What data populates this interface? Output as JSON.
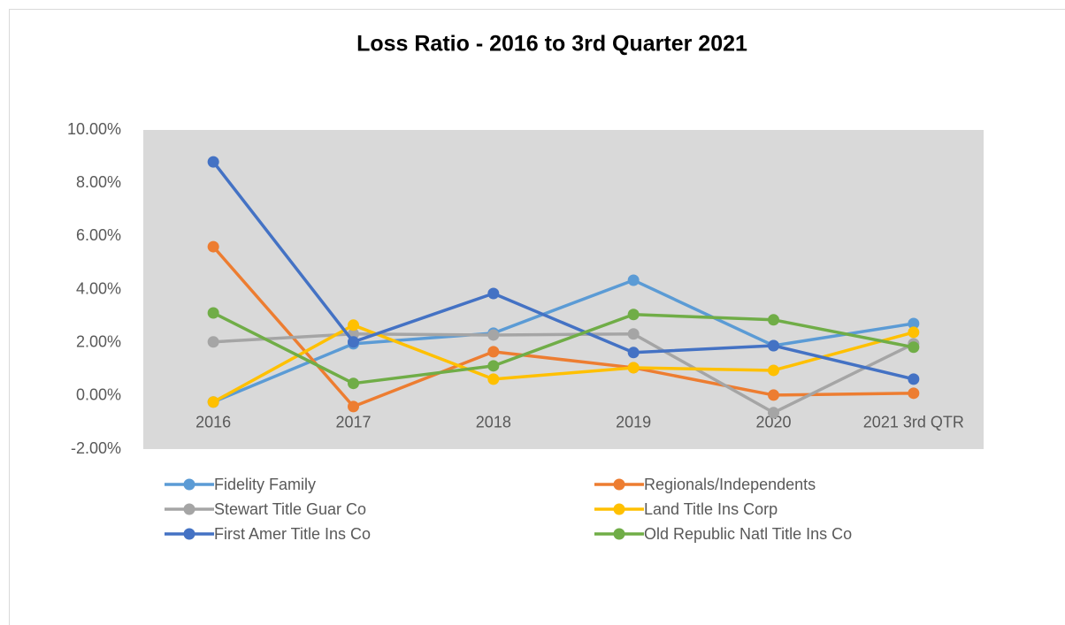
{
  "chart_data": {
    "type": "line",
    "title": "Loss Ratio - 2016 to 3rd Quarter 2021",
    "categories": [
      "2016",
      "2017",
      "2018",
      "2019",
      "2020",
      "2021 3rd QTR"
    ],
    "series": [
      {
        "name": "Fidelity Family",
        "color": "#5b9bd5",
        "values": [
          -0.23,
          1.96,
          2.36,
          4.35,
          1.89,
          2.72
        ]
      },
      {
        "name": "Regionals/Independents",
        "color": "#ed7d31",
        "values": [
          5.61,
          -0.4,
          1.66,
          1.06,
          0.03,
          0.1
        ]
      },
      {
        "name": "Stewart Title Guar Co",
        "color": "#a5a5a5",
        "values": [
          2.03,
          2.33,
          2.29,
          2.33,
          -0.63,
          1.96
        ]
      },
      {
        "name": "Land Title Ins Corp",
        "color": "#ffc000",
        "values": [
          -0.23,
          2.66,
          0.63,
          1.06,
          0.96,
          2.39
        ]
      },
      {
        "name": "First Amer Title Ins Co",
        "color": "#4472c4",
        "values": [
          8.8,
          2.03,
          3.85,
          1.63,
          1.89,
          0.63
        ]
      },
      {
        "name": "Old Republic Natl Title Ins Co",
        "color": "#70ad47",
        "values": [
          3.12,
          0.47,
          1.13,
          3.06,
          2.86,
          1.83
        ]
      }
    ],
    "ylim": [
      -2,
      10
    ],
    "yticks": [
      {
        "value": -2,
        "label": "-2.00%"
      },
      {
        "value": 0,
        "label": "0.00%"
      },
      {
        "value": 2,
        "label": "2.00%"
      },
      {
        "value": 4,
        "label": "4.00%"
      },
      {
        "value": 6,
        "label": "6.00%"
      },
      {
        "value": 8,
        "label": "8.00%"
      },
      {
        "value": 10,
        "label": "10.00%"
      }
    ],
    "grid": false,
    "legend": "bottom"
  }
}
